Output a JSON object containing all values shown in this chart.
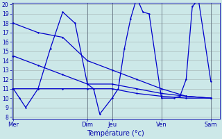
{
  "background_color": "#cce8e8",
  "grid_color": "#aabbbb",
  "line_color": "#0000cc",
  "xlabel": "Température (°c)",
  "ylim": [
    8,
    20
  ],
  "yticks": [
    8,
    9,
    10,
    11,
    12,
    13,
    14,
    15,
    16,
    17,
    18,
    19,
    20
  ],
  "day_labels": [
    "Mer",
    "Dim",
    "Jeu",
    "Ven",
    "Sam"
  ],
  "day_x": [
    0,
    12,
    16,
    24,
    32
  ],
  "top_line_x": [
    0,
    4,
    8,
    12,
    16,
    20,
    24,
    28,
    32
  ],
  "top_line_y": [
    18,
    17,
    16.5,
    14,
    13,
    12,
    11,
    10.2,
    10
  ],
  "mid_line_x": [
    0,
    4,
    8,
    12,
    16,
    20,
    24,
    28,
    32
  ],
  "mid_line_y": [
    14.5,
    13.5,
    12.5,
    11.5,
    11.5,
    11,
    10.5,
    10.2,
    10
  ],
  "bot_line_x": [
    0,
    4,
    8,
    12,
    16,
    20,
    24,
    28,
    32
  ],
  "bot_line_y": [
    11,
    11,
    11,
    11,
    11,
    10.5,
    10.2,
    10,
    10
  ],
  "zigzag_x": [
    0,
    1,
    2,
    4,
    6,
    8,
    10,
    12,
    13,
    14,
    16,
    17,
    18,
    19,
    20,
    21,
    22,
    24,
    26,
    27,
    28,
    29,
    30,
    32
  ],
  "zigzag_y": [
    11,
    10,
    9,
    11,
    15.3,
    19.2,
    18,
    11.5,
    11,
    8.3,
    10,
    11,
    15.3,
    18.5,
    20.7,
    19.2,
    19,
    10,
    10,
    10.2,
    12,
    19.8,
    20.5,
    11.8
  ]
}
